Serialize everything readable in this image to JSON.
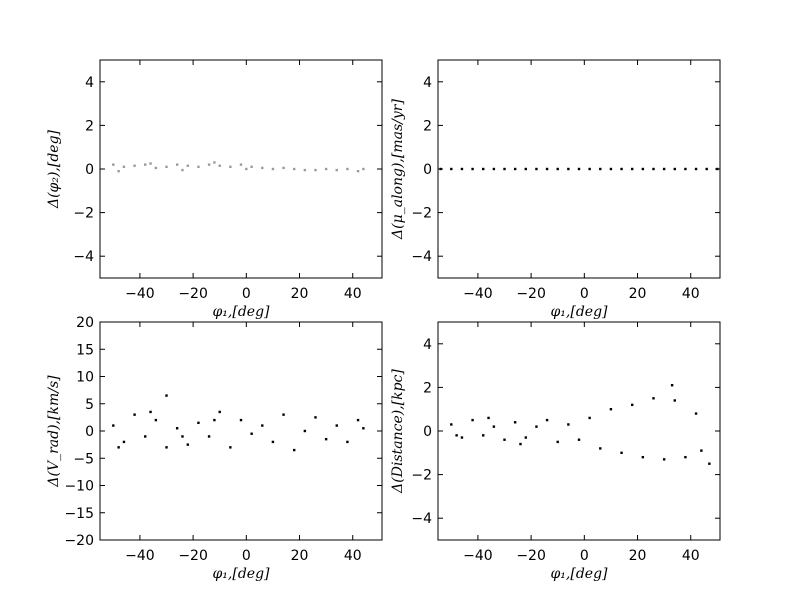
{
  "chart_data": [
    {
      "type": "scatter",
      "color": "#9a9a9a",
      "xlabel": "φ₁,[deg]",
      "ylabel": "Δ(φ₂),[deg]",
      "xlim": [
        -55,
        51
      ],
      "ylim": [
        -5,
        5
      ],
      "xticks": [
        {
          "value": -40,
          "label": "−40"
        },
        {
          "value": -20,
          "label": "−20"
        },
        0,
        20,
        40
      ],
      "yticks": [
        {
          "value": -4,
          "label": "−4"
        },
        {
          "value": -2,
          "label": "−2"
        },
        0,
        2,
        4
      ],
      "x": [
        -50,
        -46,
        -42,
        -38,
        -34,
        -30,
        -26,
        -22,
        -18,
        -14,
        -10,
        -6,
        -2,
        2,
        6,
        10,
        14,
        18,
        22,
        26,
        30,
        34,
        38,
        42,
        44,
        -48,
        -36,
        -24,
        -12,
        0
      ],
      "y": [
        0.2,
        0.1,
        0.15,
        0.2,
        0.05,
        0.1,
        0.2,
        0.15,
        0.1,
        0.2,
        0.15,
        0.1,
        0.2,
        0.1,
        0.05,
        0,
        0.05,
        0,
        -0.05,
        -0.05,
        0,
        -0.05,
        0,
        -0.1,
        0,
        -0.1,
        0.25,
        -0.05,
        0.3,
        0
      ]
    },
    {
      "type": "scatter",
      "color": "#000000",
      "xlabel": "φ₁,[deg]",
      "ylabel": "Δ(μ_along),[mas/yr]",
      "xlim": [
        -55,
        51
      ],
      "ylim": [
        -5,
        5
      ],
      "xticks": [
        {
          "value": -40,
          "label": "−40"
        },
        {
          "value": -20,
          "label": "−20"
        },
        0,
        20,
        40
      ],
      "yticks": [
        {
          "value": -4,
          "label": "−4"
        },
        {
          "value": -2,
          "label": "−2"
        },
        0,
        2,
        4
      ],
      "x": [
        -54,
        -50,
        -46,
        -42,
        -38,
        -34,
        -30,
        -26,
        -22,
        -18,
        -14,
        -10,
        -6,
        -2,
        2,
        6,
        10,
        14,
        18,
        22,
        26,
        30,
        34,
        38,
        42,
        46,
        50
      ],
      "y": [
        0,
        0,
        0,
        0,
        0,
        0,
        0,
        0,
        0,
        0,
        0,
        0,
        0,
        0,
        0,
        0,
        0,
        0,
        0,
        0,
        0,
        0,
        0,
        0,
        0,
        0,
        0
      ]
    },
    {
      "type": "scatter",
      "color": "#000000",
      "xlabel": "φ₁,[deg]",
      "ylabel": "Δ(V_rad),[km/s]",
      "xlim": [
        -55,
        51
      ],
      "ylim": [
        -20,
        20
      ],
      "xticks": [
        {
          "value": -40,
          "label": "−40"
        },
        {
          "value": -20,
          "label": "−20"
        },
        0,
        20,
        40
      ],
      "yticks": [
        {
          "value": -20,
          "label": "−20"
        },
        {
          "value": -15,
          "label": "−15"
        },
        {
          "value": -10,
          "label": "−10"
        },
        {
          "value": -5,
          "label": "−5"
        },
        0,
        5,
        10,
        15,
        20
      ],
      "x": [
        -50,
        -46,
        -42,
        -38,
        -34,
        -30,
        -26,
        -22,
        -18,
        -14,
        -10,
        -6,
        -2,
        2,
        6,
        10,
        14,
        18,
        22,
        26,
        30,
        34,
        38,
        42,
        44,
        -48,
        -36,
        -24,
        -12,
        -30
      ],
      "y": [
        1,
        -2,
        3,
        -1,
        2,
        -3,
        0.5,
        -2.5,
        1.5,
        -1,
        3.5,
        -3,
        2,
        -0.5,
        1,
        -2,
        3,
        -3.5,
        0,
        2.5,
        -1.5,
        1,
        -2,
        2,
        0.5,
        -3,
        3.5,
        -1,
        2,
        6.5
      ]
    },
    {
      "type": "scatter",
      "color": "#000000",
      "xlabel": "φ₁,[deg]",
      "ylabel": "Δ(Distance),[kpc]",
      "xlim": [
        -55,
        51
      ],
      "ylim": [
        -5,
        5
      ],
      "xticks": [
        {
          "value": -40,
          "label": "−40"
        },
        {
          "value": -20,
          "label": "−20"
        },
        0,
        20,
        40
      ],
      "yticks": [
        {
          "value": -4,
          "label": "−4"
        },
        {
          "value": -2,
          "label": "−2"
        },
        0,
        2,
        4
      ],
      "x": [
        -50,
        -46,
        -42,
        -38,
        -34,
        -30,
        -26,
        -22,
        -18,
        -14,
        -10,
        -6,
        -2,
        2,
        6,
        10,
        14,
        18,
        22,
        26,
        30,
        34,
        38,
        42,
        44,
        -48,
        -36,
        -24,
        47,
        33
      ],
      "y": [
        0.3,
        -0.3,
        0.5,
        -0.2,
        0.2,
        -0.4,
        0.4,
        -0.3,
        0.2,
        0.5,
        -0.5,
        0.3,
        -0.4,
        0.6,
        -0.8,
        1,
        -1,
        1.2,
        -1.2,
        1.5,
        -1.3,
        1.4,
        -1.2,
        0.8,
        -0.9,
        -0.2,
        0.6,
        -0.6,
        -1.5,
        2.1
      ]
    }
  ]
}
